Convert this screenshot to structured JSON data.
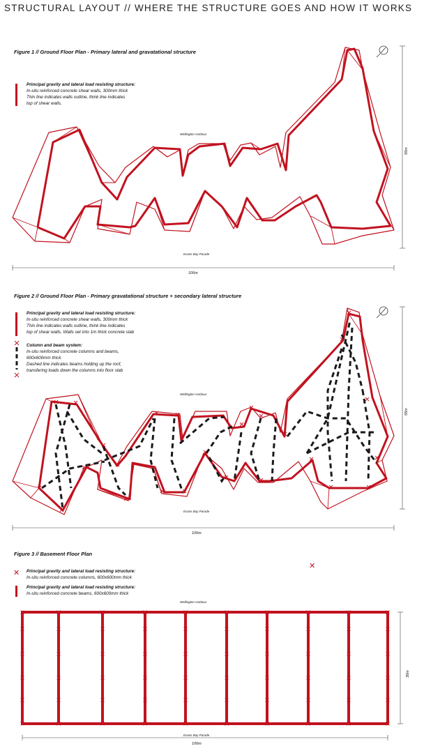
{
  "title": "STRUCTURAL LAYOUT  //  WHERE THE STRUCTURE GOES AND HOW IT WORKS",
  "figures": [
    {
      "title": "Figure 1  //  Ground Floor Plan - Primary lateral and gravatational structure",
      "legend": [
        {
          "heading": "Principal gravity and lateral load resisting structure:",
          "lines": [
            "In-situ reinforced concrete shear walls, 300mm thick",
            "Thin line indicates walls outline, think line indicates",
            "top of shear walls."
          ]
        }
      ],
      "north_label": "Wellington Harbour",
      "south_label": "Evans Bay Parade",
      "width_label": "106m",
      "height_label": "55m"
    },
    {
      "title": "Figure 2  //  Ground Floor Plan - Primary gravatational structure + secondary lateral structure",
      "legend": [
        {
          "heading": "Principal gravity and lateral load resisting structure:",
          "lines": [
            "In-situ reinforced concrete shear walls, 300mm thick",
            "Thin line indicates walls outline, think line indicates",
            "top of shear walls. Walls set into 1m thick concrete slab"
          ]
        },
        {
          "heading": "Column and beam system:",
          "lines": [
            "In-situ reinforced concrete columns and beams,",
            "600x600mm thick.",
            "Dashed line indicates beams holding up the roof,",
            "transfering loads down the columns into floor slab"
          ]
        }
      ],
      "north_label": "Wellington Harbour",
      "south_label": "Evans Bay Parade",
      "width_label": "106m",
      "height_label": "55m"
    },
    {
      "title": "Figure 3  //  Basement Floor Plan",
      "legend": [
        {
          "heading": "Principal gravity and lateral load resisting structure:",
          "lines": [
            "In-situ reinforced concrete columns, 600x600mm thick"
          ]
        },
        {
          "heading": "Principal gravity and lateral load resisting structure:",
          "lines": [
            "In-situ reinforced concrete beams, 600x600mm thick"
          ]
        }
      ],
      "north_label": "Wellington Harbour",
      "south_label": "Evans Bay Parade",
      "width_label": "106m",
      "height_label": "35m"
    }
  ],
  "colors": {
    "structure": "#c1121f",
    "beam_dash": "#1a1a1a",
    "dimension": "#444444"
  },
  "icons": [
    "north-arrow-icon",
    "column-cross-icon",
    "wall-bar-icon",
    "beam-dash-icon"
  ]
}
